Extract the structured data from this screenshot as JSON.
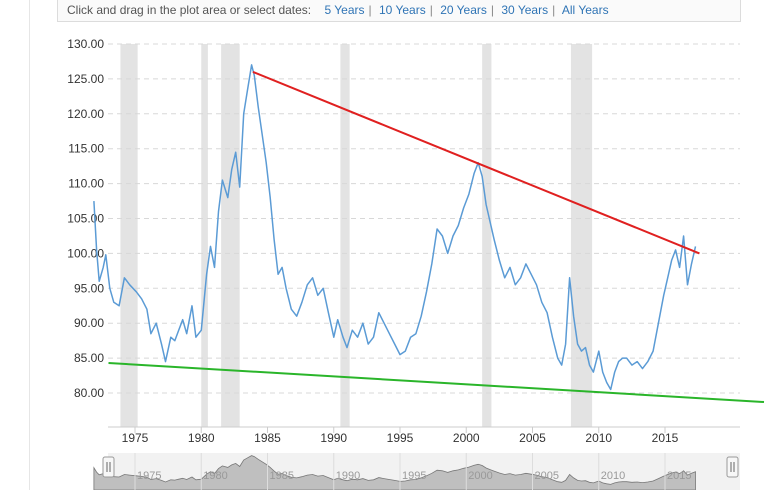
{
  "toolbar": {
    "prompt": "Click and drag in the plot area or select dates:",
    "options": [
      "5 Years",
      "10 Years",
      "20 Years",
      "30 Years",
      "All Years"
    ]
  },
  "chart_data": {
    "type": "line",
    "title": "",
    "xlabel": "",
    "ylabel": "",
    "xlim": [
      1971.7,
      2017.6
    ],
    "ylim": [
      75,
      130
    ],
    "y_ticks": [
      "130.00",
      "125.00",
      "120.00",
      "115.00",
      "110.00",
      "105.00",
      "100.00",
      "95.00",
      "90.00",
      "85.00",
      "80.00"
    ],
    "y_tick_values": [
      130,
      125,
      120,
      115,
      110,
      105,
      100,
      95,
      90,
      85,
      80
    ],
    "x_ticks": [
      "1975",
      "1980",
      "1985",
      "1990",
      "1995",
      "2000",
      "2005",
      "2010",
      "2015"
    ],
    "x_tick_values": [
      1975,
      1980,
      1985,
      1990,
      1995,
      2000,
      2005,
      2010,
      2015
    ],
    "grid": true,
    "recessions": [
      [
        1973.9,
        1975.2
      ],
      [
        1980.0,
        1980.5
      ],
      [
        1981.5,
        1982.9
      ],
      [
        1990.5,
        1991.2
      ],
      [
        2001.2,
        2001.9
      ],
      [
        2007.9,
        2009.5
      ]
    ],
    "series": [
      {
        "color": "#5b9bd5",
        "x": [
          1971.9,
          1972.1,
          1972.3,
          1972.6,
          1972.8,
          1973.1,
          1973.4,
          1973.8,
          1974.2,
          1974.6,
          1975.1,
          1975.5,
          1975.9,
          1976.2,
          1976.6,
          1977.0,
          1977.3,
          1977.7,
          1978.0,
          1978.3,
          1978.6,
          1978.9,
          1979.3,
          1979.6,
          1980.0,
          1980.4,
          1980.7,
          1981.0,
          1981.3,
          1981.6,
          1982.0,
          1982.3,
          1982.6,
          1982.9,
          1983.2,
          1983.5,
          1983.8,
          1984.0,
          1984.3,
          1984.6,
          1984.9,
          1985.2,
          1985.5,
          1985.8,
          1986.1,
          1986.4,
          1986.8,
          1987.2,
          1987.6,
          1988.0,
          1988.4,
          1988.8,
          1989.2,
          1989.6,
          1990.0,
          1990.3,
          1990.7,
          1991.0,
          1991.4,
          1991.8,
          1992.2,
          1992.6,
          1993.0,
          1993.4,
          1993.8,
          1994.2,
          1994.6,
          1995.0,
          1995.4,
          1995.8,
          1996.2,
          1996.6,
          1997.0,
          1997.4,
          1997.8,
          1998.2,
          1998.6,
          1999.0,
          1999.4,
          1999.8,
          2000.2,
          2000.6,
          2000.9,
          2001.2,
          2001.5,
          2001.8,
          2002.1,
          2002.5,
          2002.9,
          2003.3,
          2003.7,
          2004.1,
          2004.5,
          2004.9,
          2005.3,
          2005.7,
          2006.1,
          2006.5,
          2006.9,
          2007.2,
          2007.5,
          2007.8,
          2008.1,
          2008.4,
          2008.7,
          2009.0,
          2009.3,
          2009.6,
          2010.0,
          2010.3,
          2010.6,
          2010.9,
          2011.2,
          2011.5,
          2011.8,
          2012.1,
          2012.5,
          2012.9,
          2013.3,
          2013.7,
          2014.1,
          2014.5,
          2014.9,
          2015.2,
          2015.5,
          2015.8,
          2016.1,
          2016.4,
          2016.7,
          2017.0,
          2017.3
        ],
        "y": [
          107.5,
          100.5,
          96.0,
          98.0,
          99.8,
          95.0,
          93.0,
          92.5,
          96.5,
          95.5,
          94.5,
          93.5,
          92.0,
          88.5,
          90.0,
          87.0,
          84.5,
          88.0,
          87.5,
          89.0,
          90.5,
          88.5,
          92.5,
          88.0,
          89.0,
          97.0,
          101.0,
          98.0,
          106.0,
          110.5,
          108.0,
          112.0,
          114.5,
          109.5,
          120.0,
          123.5,
          127.0,
          125.5,
          121.0,
          117.0,
          113.0,
          108.0,
          102.0,
          97.0,
          98.0,
          95.0,
          92.0,
          91.0,
          93.0,
          95.5,
          96.5,
          94.0,
          95.0,
          91.5,
          88.0,
          90.5,
          88.0,
          86.5,
          89.0,
          88.0,
          90.0,
          87.0,
          88.0,
          91.5,
          90.0,
          88.5,
          87.0,
          85.5,
          86.0,
          88.0,
          88.5,
          91.0,
          94.5,
          98.5,
          103.5,
          102.5,
          100.0,
          102.5,
          104.0,
          106.5,
          108.5,
          111.5,
          113.0,
          111.0,
          107.0,
          104.5,
          102.0,
          99.0,
          96.5,
          98.0,
          95.5,
          96.5,
          98.5,
          97.0,
          95.5,
          93.0,
          91.5,
          88.0,
          85.0,
          84.0,
          87.0,
          96.5,
          91.0,
          87.0,
          86.0,
          86.5,
          84.0,
          83.0,
          86.0,
          83.0,
          81.5,
          80.5,
          83.0,
          84.5,
          85.0,
          85.0,
          84.0,
          84.5,
          83.5,
          84.5,
          86.0,
          90.0,
          94.0,
          96.5,
          99.0,
          100.5,
          98.0,
          102.5,
          95.5,
          98.5,
          101.0
        ]
      }
    ],
    "trendlines": [
      {
        "color": "#e02020",
        "x": [
          1983.9,
          2017.6
        ],
        "y": [
          126.0,
          100.0
        ]
      },
      {
        "color": "#2ab52a",
        "x": [
          1973.0,
          2022.5
        ],
        "y": [
          84.3,
          78.7
        ]
      }
    ],
    "navigator": {
      "x_ticks": [
        "1975",
        "1980",
        "1985",
        "1990",
        "1995",
        "2000",
        "2005",
        "2010",
        "2015"
      ]
    }
  }
}
